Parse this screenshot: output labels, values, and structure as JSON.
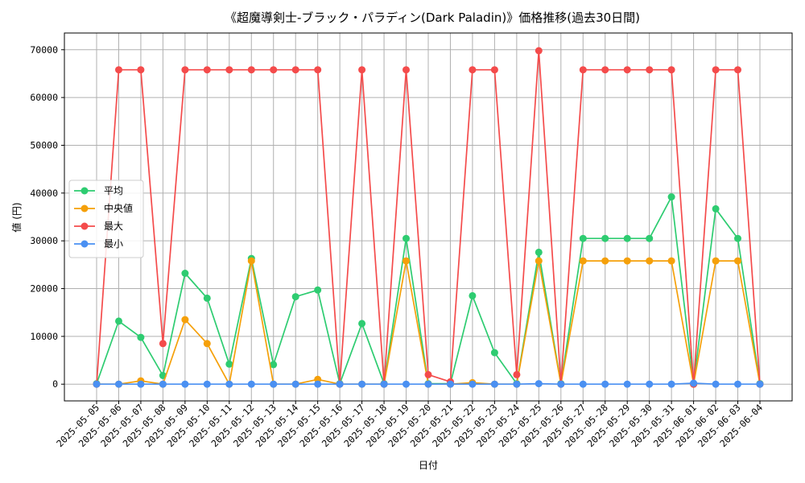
{
  "chart_data": {
    "type": "line",
    "title": "《超魔導剣士-ブラック・パラディン(Dark Paladin)》価格推移(過去30日間)",
    "xlabel": "日付",
    "ylabel": "値 (円)",
    "ylim": [
      -3500,
      73500
    ],
    "yticks": [
      0,
      10000,
      20000,
      30000,
      40000,
      50000,
      60000,
      70000
    ],
    "grid": true,
    "legend_position": "center-left",
    "categories": [
      "2025-05-05",
      "2025-05-06",
      "2025-05-07",
      "2025-05-08",
      "2025-05-09",
      "2025-05-10",
      "2025-05-11",
      "2025-05-12",
      "2025-05-13",
      "2025-05-14",
      "2025-05-15",
      "2025-05-16",
      "2025-05-17",
      "2025-05-18",
      "2025-05-19",
      "2025-05-20",
      "2025-05-21",
      "2025-05-22",
      "2025-05-23",
      "2025-05-24",
      "2025-05-25",
      "2025-05-26",
      "2025-05-27",
      "2025-05-28",
      "2025-05-29",
      "2025-05-30",
      "2025-05-31",
      "2025-06-01",
      "2025-06-02",
      "2025-06-03",
      "2025-06-04"
    ],
    "series": [
      {
        "name": "平均",
        "color": "#2ecc71",
        "values": [
          100,
          13200,
          9800,
          1800,
          23200,
          18000,
          4200,
          26300,
          4100,
          18300,
          19700,
          100,
          12700,
          100,
          30500,
          100,
          100,
          18500,
          6600,
          100,
          27600,
          100,
          30500,
          30500,
          30500,
          30500,
          39200,
          100,
          36700,
          30500,
          100
        ]
      },
      {
        "name": "中央値",
        "color": "#f5a00a",
        "values": [
          0,
          0,
          700,
          0,
          13500,
          8500,
          0,
          25800,
          0,
          0,
          1000,
          0,
          0,
          0,
          25800,
          0,
          0,
          300,
          0,
          0,
          25800,
          0,
          25800,
          25800,
          25800,
          25800,
          25800,
          0,
          25800,
          25800,
          0
        ]
      },
      {
        "name": "最大",
        "color": "#f44b4b",
        "values": [
          0,
          65800,
          65800,
          8500,
          65800,
          65800,
          65800,
          65800,
          65800,
          65800,
          65800,
          0,
          65800,
          0,
          65800,
          2000,
          500,
          65800,
          65800,
          2000,
          69800,
          0,
          65800,
          65800,
          65800,
          65800,
          65800,
          0,
          65800,
          65800,
          0
        ]
      },
      {
        "name": "最小",
        "color": "#4a90f2",
        "values": [
          0,
          0,
          0,
          0,
          0,
          0,
          0,
          0,
          0,
          0,
          0,
          0,
          0,
          0,
          0,
          0,
          0,
          0,
          0,
          0,
          100,
          0,
          0,
          0,
          0,
          0,
          0,
          200,
          0,
          0,
          0
        ]
      }
    ]
  }
}
